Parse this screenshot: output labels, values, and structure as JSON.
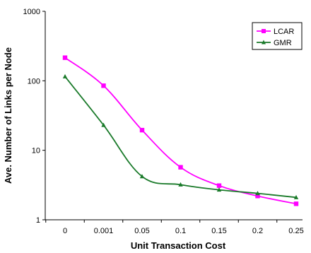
{
  "chart_data": {
    "type": "line",
    "xlabel": "Unit Transaction Cost",
    "ylabel": "Ave. Number of Links per Node",
    "y_scale": "log",
    "ylim": [
      1,
      1000
    ],
    "y_ticks": [
      "1",
      "10",
      "100",
      "1000"
    ],
    "categories": [
      "0",
      "0.001",
      "0.05",
      "0.1",
      "0.15",
      "0.2",
      "0.25"
    ],
    "grid": false,
    "legend_position": "top-right",
    "series": [
      {
        "name": "LCAR",
        "color": "#ff00ff",
        "marker": "square",
        "values": [
          215,
          85,
          19.5,
          5.7,
          3.1,
          2.2,
          1.7
        ]
      },
      {
        "name": "GMR",
        "color": "#1a7a2a",
        "marker": "triangle",
        "values": [
          115,
          23,
          4.2,
          3.2,
          2.7,
          2.4,
          2.1
        ]
      }
    ]
  }
}
